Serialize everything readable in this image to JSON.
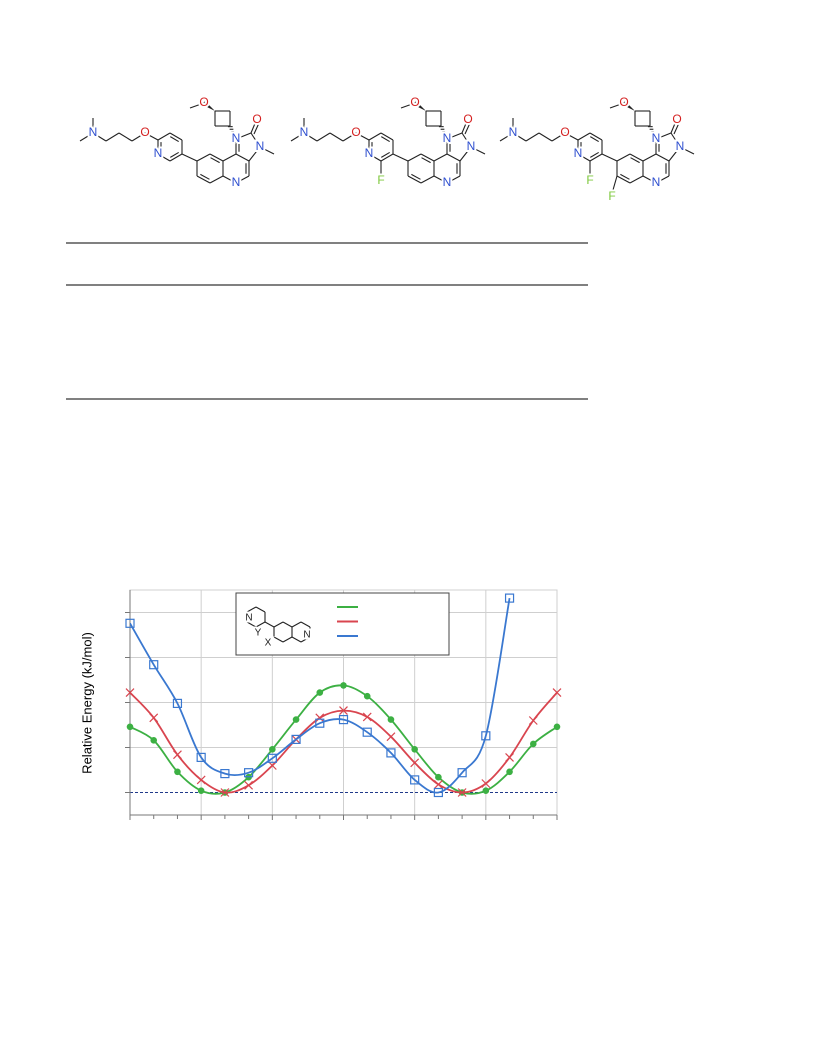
{
  "molecules": [
    {
      "atoms": [
        {
          "label": "N",
          "color": "#2f4fcf"
        },
        {
          "label": "O",
          "color": "#d42020"
        },
        {
          "label": "N",
          "color": "#2f4fcf"
        },
        {
          "label": "O",
          "color": "#d42020"
        },
        {
          "label": "N",
          "color": "#2f4fcf"
        },
        {
          "label": "O",
          "color": "#d42020"
        },
        {
          "label": "N",
          "color": "#2f4fcf"
        },
        {
          "label": "N",
          "color": "#2f4fcf"
        }
      ]
    },
    {
      "atoms": [
        {
          "label": "N",
          "color": "#2f4fcf"
        },
        {
          "label": "O",
          "color": "#d42020"
        },
        {
          "label": "N",
          "color": "#2f4fcf"
        },
        {
          "label": "O",
          "color": "#d42020"
        },
        {
          "label": "N",
          "color": "#2f4fcf"
        },
        {
          "label": "O",
          "color": "#d42020"
        },
        {
          "label": "N",
          "color": "#2f4fcf"
        },
        {
          "label": "N",
          "color": "#2f4fcf"
        },
        {
          "label": "F",
          "color": "#7ec83c"
        }
      ]
    },
    {
      "atoms": [
        {
          "label": "N",
          "color": "#2f4fcf"
        },
        {
          "label": "O",
          "color": "#d42020"
        },
        {
          "label": "N",
          "color": "#2f4fcf"
        },
        {
          "label": "O",
          "color": "#d42020"
        },
        {
          "label": "N",
          "color": "#2f4fcf"
        },
        {
          "label": "O",
          "color": "#d42020"
        },
        {
          "label": "N",
          "color": "#2f4fcf"
        },
        {
          "label": "N",
          "color": "#2f4fcf"
        },
        {
          "label": "F",
          "color": "#7ec83c"
        },
        {
          "label": "F",
          "color": "#7ec83c"
        }
      ]
    }
  ],
  "chart_data": {
    "type": "line",
    "y_label": "Relative Energy (kJ/mol)",
    "annotations": [
      "N",
      "Y",
      "X",
      "N"
    ],
    "x": [
      -180,
      -160,
      -140,
      -120,
      -100,
      -80,
      -60,
      -40,
      -20,
      0,
      20,
      40,
      60,
      80,
      100,
      120,
      140,
      160,
      180
    ],
    "xlim": [
      -180,
      180
    ],
    "xticks": [
      -180,
      -120,
      -60,
      0,
      60,
      120,
      180
    ],
    "xminorticks": [
      -160,
      -140,
      -100,
      -80,
      -40,
      -20,
      20,
      40,
      80,
      100,
      140,
      160
    ],
    "ylim": [
      -2.5,
      22.5
    ],
    "yticks": [
      0,
      5,
      10,
      15,
      20
    ],
    "grid": true,
    "series": [
      {
        "color": "#3cb043",
        "marker": "circle",
        "values": [
          7.3,
          5.8,
          2.3,
          0.2,
          0,
          1.7,
          4.8,
          8.1,
          11.1,
          11.9,
          10.7,
          8.1,
          4.8,
          1.7,
          0,
          0.2,
          2.3,
          5.4,
          7.3
        ]
      },
      {
        "color": "#d9454f",
        "marker": "cross",
        "values": [
          11.1,
          8.3,
          4.2,
          1.4,
          0,
          0.8,
          3.0,
          5.9,
          8.3,
          9.1,
          8.4,
          6.2,
          3.3,
          0.9,
          0,
          1.0,
          3.9,
          8.0,
          11.1
        ]
      },
      {
        "color": "#3a78d0",
        "marker": "square",
        "values": [
          18.8,
          14.2,
          9.9,
          3.9,
          2.1,
          2.2,
          3.8,
          5.9,
          7.7,
          8.1,
          6.7,
          4.4,
          1.4,
          0,
          2.2,
          6.3,
          21.6,
          null,
          null
        ]
      }
    ]
  }
}
